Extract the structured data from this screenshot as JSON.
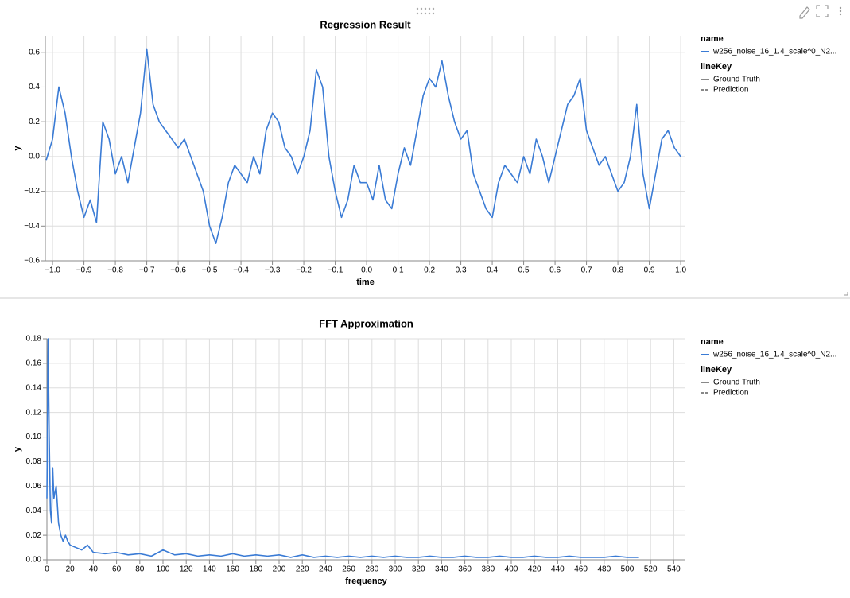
{
  "chart_data": [
    {
      "type": "line",
      "title": "Regression Result",
      "x_label": "time",
      "y_label": "y",
      "grid": true,
      "legend": {
        "title": "name"
      },
      "line_key": {
        "title": "lineKey",
        "entries": [
          "Ground Truth",
          "Prediction"
        ]
      },
      "xlim": [
        -1.023,
        1.015
      ],
      "ylim": [
        -0.6,
        0.695
      ],
      "xticks": [
        {
          "value": -1.0,
          "label": "−1.0"
        },
        {
          "value": -0.9,
          "label": "−0.9"
        },
        {
          "value": -0.8,
          "label": "−0.8"
        },
        {
          "value": -0.7,
          "label": "−0.7"
        },
        {
          "value": -0.6,
          "label": "−0.6"
        },
        {
          "value": -0.5,
          "label": "−0.5"
        },
        {
          "value": -0.4,
          "label": "−0.4"
        },
        {
          "value": -0.3,
          "label": "−0.3"
        },
        {
          "value": -0.2,
          "label": "−0.2"
        },
        {
          "value": -0.1,
          "label": "−0.1"
        },
        {
          "value": 0,
          "label": "0.0"
        },
        0.1,
        0.2,
        0.3,
        0.4,
        0.5,
        0.6,
        0.7,
        0.8,
        0.9,
        {
          "value": 1,
          "label": "1.0"
        }
      ],
      "yticks": [
        {
          "value": -0.6,
          "label": "−0.6"
        },
        {
          "value": -0.4,
          "label": "−0.4"
        },
        {
          "value": -0.2,
          "label": "−0.2"
        },
        {
          "value": 0,
          "label": "0.0"
        },
        0.2,
        0.4,
        0.6
      ],
      "x": [
        -1.02,
        -1.0,
        -0.98,
        -0.96,
        -0.94,
        -0.92,
        -0.9,
        -0.88,
        -0.86,
        -0.84,
        -0.82,
        -0.8,
        -0.78,
        -0.76,
        -0.74,
        -0.72,
        -0.7,
        -0.68,
        -0.66,
        -0.64,
        -0.62,
        -0.6,
        -0.58,
        -0.56,
        -0.54,
        -0.52,
        -0.5,
        -0.48,
        -0.46,
        -0.44,
        -0.42,
        -0.4,
        -0.38,
        -0.36,
        -0.34,
        -0.32,
        -0.3,
        -0.28,
        -0.26,
        -0.24,
        -0.22,
        -0.2,
        -0.18,
        -0.16,
        -0.14,
        -0.12,
        -0.1,
        -0.08,
        -0.06,
        -0.04,
        -0.02,
        0,
        0.02,
        0.04,
        0.06,
        0.08,
        0.1,
        0.12,
        0.14,
        0.16,
        0.18,
        0.2,
        0.22,
        0.24,
        0.26,
        0.28,
        0.3,
        0.32,
        0.34,
        0.36,
        0.38,
        0.4,
        0.42,
        0.44,
        0.46,
        0.48,
        0.5,
        0.52,
        0.54,
        0.56,
        0.58,
        0.6,
        0.62,
        0.64,
        0.66,
        0.68,
        0.7,
        0.72,
        0.74,
        0.76,
        0.78,
        0.8,
        0.82,
        0.84,
        0.86,
        0.88,
        0.9,
        0.92,
        0.94,
        0.96,
        0.98,
        1.0
      ],
      "series": [
        {
          "name": "w256_noise_16_1.4_scale^0_N2...",
          "color": "#3a7bd5",
          "values": [
            -0.02,
            0.1,
            0.4,
            0.25,
            0.0,
            -0.2,
            -0.35,
            -0.25,
            -0.38,
            0.2,
            0.1,
            -0.1,
            0.0,
            -0.15,
            0.05,
            0.25,
            0.62,
            0.3,
            0.2,
            0.15,
            0.1,
            0.05,
            0.1,
            0.0,
            -0.1,
            -0.2,
            -0.4,
            -0.5,
            -0.35,
            -0.15,
            -0.05,
            -0.1,
            -0.15,
            0.0,
            -0.1,
            0.15,
            0.25,
            0.2,
            0.05,
            0.0,
            -0.1,
            0.0,
            0.15,
            0.5,
            0.4,
            0.0,
            -0.2,
            -0.35,
            -0.25,
            -0.05,
            -0.15,
            -0.15,
            -0.25,
            -0.05,
            -0.25,
            -0.3,
            -0.1,
            0.05,
            -0.05,
            0.15,
            0.35,
            0.45,
            0.4,
            0.55,
            0.35,
            0.2,
            0.1,
            0.15,
            -0.1,
            -0.2,
            -0.3,
            -0.35,
            -0.15,
            -0.05,
            -0.1,
            -0.15,
            0.0,
            -0.1,
            0.1,
            0.0,
            -0.15,
            0.0,
            0.15,
            0.3,
            0.35,
            0.45,
            0.15,
            0.05,
            -0.05,
            0.0,
            -0.1,
            -0.2,
            -0.15,
            0.0,
            0.3,
            -0.1,
            -0.3,
            -0.1,
            0.1,
            0.15,
            0.05,
            0.0
          ]
        }
      ]
    },
    {
      "type": "line",
      "title": "FFT Approximation",
      "x_label": "frequency",
      "y_label": "y",
      "grid": true,
      "legend": {
        "title": "name"
      },
      "line_key": {
        "title": "lineKey",
        "entries": [
          "Ground Truth",
          "Prediction"
        ]
      },
      "xlim": [
        0,
        550
      ],
      "ylim": [
        0,
        0.18
      ],
      "xticks": [
        0,
        20,
        40,
        60,
        80,
        100,
        120,
        140,
        160,
        180,
        200,
        220,
        240,
        260,
        280,
        300,
        320,
        340,
        360,
        380,
        400,
        420,
        440,
        460,
        480,
        500,
        520,
        540
      ],
      "yticks": [
        {
          "value": 0,
          "label": "0.00"
        },
        {
          "value": 0.02,
          "label": "0.02"
        },
        {
          "value": 0.04,
          "label": "0.04"
        },
        {
          "value": 0.06,
          "label": "0.06"
        },
        {
          "value": 0.08,
          "label": "0.08"
        },
        {
          "value": 0.1,
          "label": "0.10"
        },
        {
          "value": 0.12,
          "label": "0.12"
        },
        {
          "value": 0.14,
          "label": "0.14"
        },
        {
          "value": 0.16,
          "label": "0.16"
        },
        {
          "value": 0.18,
          "label": "0.18"
        }
      ],
      "x": [
        0,
        1,
        2,
        3,
        4,
        5,
        6,
        8,
        10,
        12,
        14,
        16,
        18,
        20,
        25,
        30,
        35,
        40,
        50,
        60,
        70,
        80,
        90,
        100,
        110,
        120,
        130,
        140,
        150,
        160,
        170,
        180,
        190,
        200,
        210,
        220,
        230,
        240,
        250,
        260,
        270,
        280,
        290,
        300,
        310,
        320,
        330,
        340,
        350,
        360,
        370,
        380,
        390,
        400,
        410,
        420,
        430,
        440,
        450,
        460,
        470,
        480,
        490,
        500,
        510
      ],
      "series": [
        {
          "name": "w256_noise_16_1.4_scale^0_N2...",
          "color": "#3a7bd5",
          "values": [
            0.05,
            0.18,
            0.1,
            0.04,
            0.03,
            0.075,
            0.05,
            0.06,
            0.03,
            0.02,
            0.015,
            0.02,
            0.015,
            0.012,
            0.01,
            0.008,
            0.012,
            0.006,
            0.005,
            0.006,
            0.004,
            0.005,
            0.003,
            0.008,
            0.004,
            0.005,
            0.003,
            0.004,
            0.003,
            0.005,
            0.003,
            0.004,
            0.003,
            0.004,
            0.002,
            0.004,
            0.002,
            0.003,
            0.002,
            0.003,
            0.002,
            0.003,
            0.002,
            0.003,
            0.002,
            0.002,
            0.003,
            0.002,
            0.002,
            0.003,
            0.002,
            0.002,
            0.003,
            0.002,
            0.002,
            0.003,
            0.002,
            0.002,
            0.003,
            0.002,
            0.002,
            0.002,
            0.003,
            0.002,
            0.002
          ]
        }
      ]
    }
  ]
}
